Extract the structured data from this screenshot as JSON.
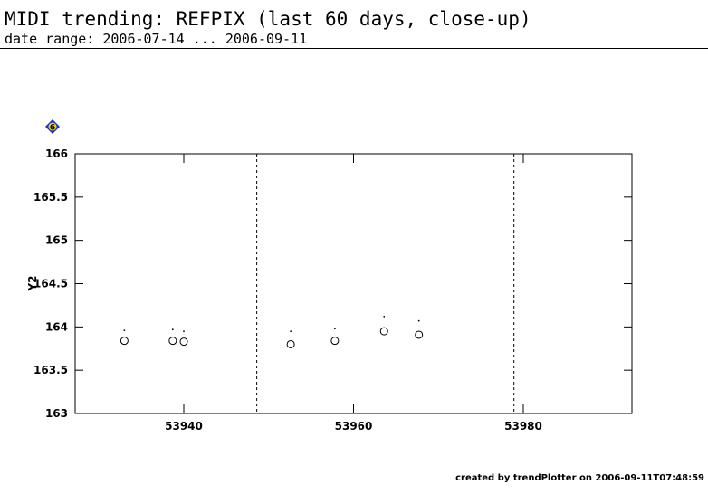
{
  "chart_data": {
    "type": "scatter",
    "title": "MIDI trending: REFPIX (last 60 days, close-up)",
    "subtitle": "date range: 2006-07-14 ... 2006-09-11",
    "badge": "6",
    "ylabel": "Y2",
    "footer": "created by trendPlotter on 2006-09-11T07:48:59",
    "xlim": [
      53927.2,
      53992.8
    ],
    "xticks": [
      53940,
      53960,
      53980
    ],
    "ylim": [
      163,
      166
    ],
    "yticks": [
      163,
      163.5,
      164,
      164.5,
      165,
      165.5,
      166
    ],
    "vlines": [
      53948.6,
      53978.9
    ],
    "series": [
      {
        "marker": "circle",
        "color": "#000000",
        "x": [
          53933.0,
          53938.7,
          53940.0,
          53952.6,
          53957.8,
          53963.6,
          53967.7
        ],
        "values": [
          163.84,
          163.84,
          163.83,
          163.8,
          163.84,
          163.95,
          163.91
        ]
      },
      {
        "marker": "dot",
        "color": "#000000",
        "x": [
          53933.0,
          53938.7,
          53940.0,
          53952.6,
          53957.8,
          53963.6,
          53967.7
        ],
        "values": [
          163.96,
          163.97,
          163.95,
          163.95,
          163.98,
          164.12,
          164.07
        ]
      }
    ]
  }
}
